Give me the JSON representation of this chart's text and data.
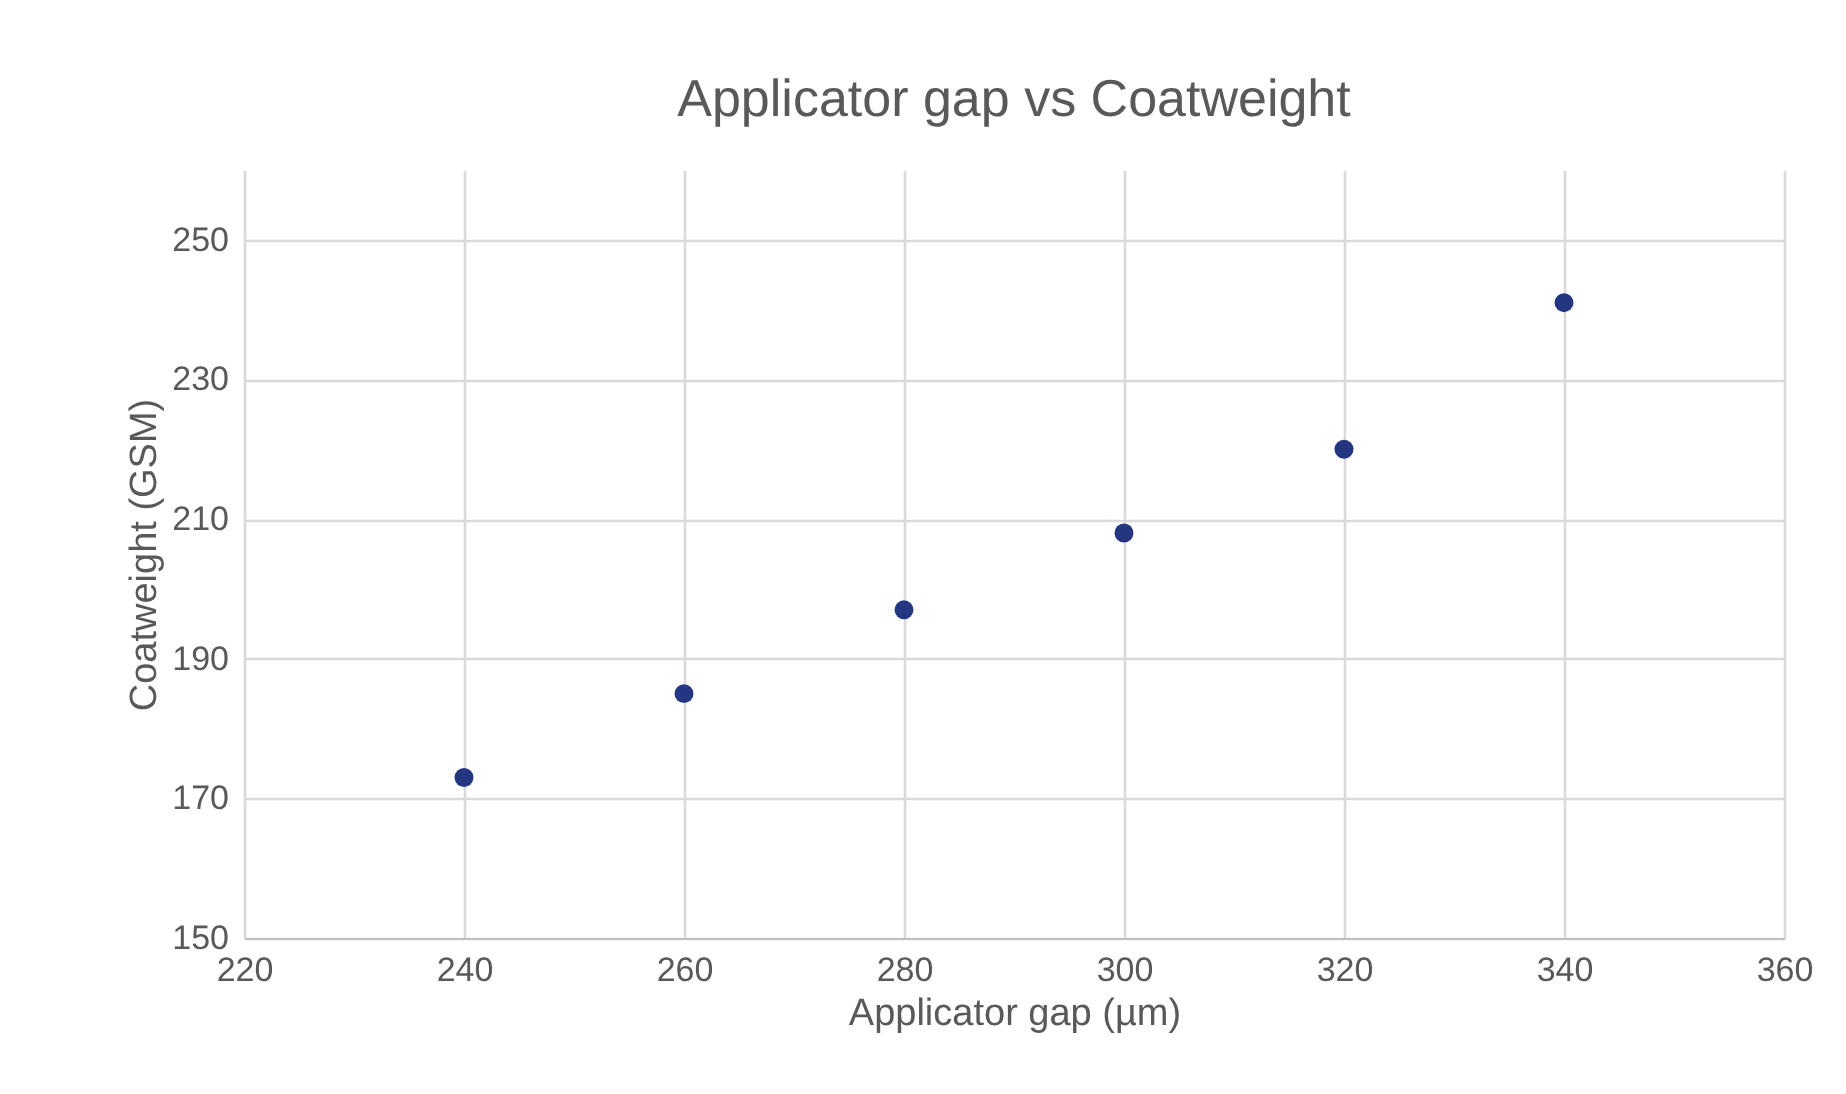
{
  "chart_data": {
    "type": "scatter",
    "title": "Applicator gap vs Coatweight",
    "xlabel": "Applicator gap (µm)",
    "ylabel": "Coatweight (GSM)",
    "x": [
      240,
      260,
      280,
      300,
      320,
      340
    ],
    "series": [
      {
        "color": "#253680",
        "values": [
          173,
          185,
          197,
          208,
          220,
          241
        ]
      }
    ],
    "xlim": [
      220,
      360
    ],
    "xticks": [
      220,
      240,
      260,
      280,
      300,
      320,
      340,
      360
    ],
    "ylim": [
      150,
      260
    ],
    "yticks": [
      150,
      170,
      190,
      210,
      230,
      250
    ],
    "grid": true,
    "marker": "circle"
  }
}
